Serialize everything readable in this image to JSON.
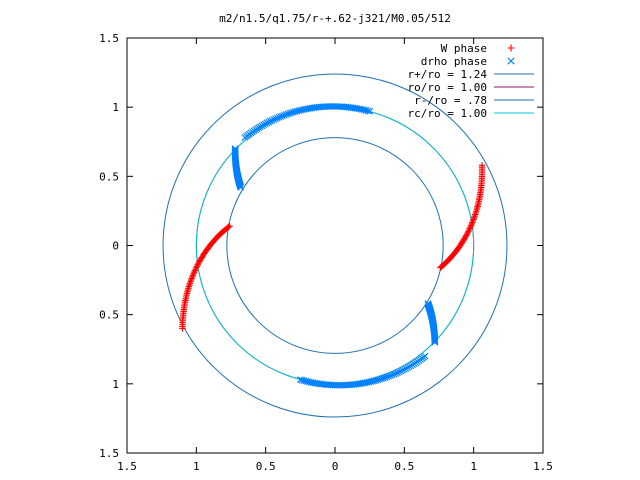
{
  "chart_data": {
    "type": "scatter",
    "title": "m2/n1.5/q1.75/r-+.62-j321/M0.05/512",
    "xlabel": "",
    "ylabel": "",
    "xlim": [
      -1.5,
      1.5
    ],
    "ylim": [
      -1.5,
      1.5
    ],
    "xticks": [
      -1.5,
      -1,
      -0.5,
      0,
      0.5,
      1,
      1.5
    ],
    "yticks": [
      -1.5,
      -1,
      -0.5,
      0,
      0.5,
      1,
      1.5
    ],
    "xtick_labels": [
      "1.5",
      "1",
      "0.5",
      "0",
      "0.5",
      "1",
      "1.5"
    ],
    "ytick_labels": [
      "1.5",
      "1",
      "0.5",
      "0",
      "0.5",
      "1",
      "1.5"
    ],
    "grid": false,
    "legend_position": "top-right",
    "colors": {
      "w_phase": "#ff0000",
      "drho_phase": "#0080ff",
      "r_plus": "#1f6fb4",
      "ro": "#8b1a6b",
      "r_minus": "#1f6fb4",
      "rc": "#00c8d8"
    },
    "circles": [
      {
        "label": "r+/ro = 1.24",
        "radius": 1.24,
        "color_key": "r_plus"
      },
      {
        "label": "ro/ro = 1.00",
        "radius": 1.0,
        "color_key": "ro"
      },
      {
        "label": "r-/ro = .78",
        "radius": 0.78,
        "color_key": "r_minus"
      },
      {
        "label": "rc/ro = 1.00",
        "radius": 1.0,
        "color_key": "rc"
      }
    ],
    "series": [
      {
        "name": "W phase",
        "marker": "+",
        "color_key": "w_phase",
        "arcs": [
          {
            "x0": 1.06,
            "y0": 0.58,
            "x1": 0.76,
            "y1": -0.16
          },
          {
            "x0": -0.76,
            "y0": 0.14,
            "x1": -1.1,
            "y1": -0.6
          }
        ]
      },
      {
        "name": "drho phase",
        "marker": "x",
        "color_key": "drho_phase",
        "arcs": [
          {
            "x0": -0.68,
            "y0": 0.42,
            "x1": -0.72,
            "y1": 0.7
          },
          {
            "x0": -0.65,
            "y0": 0.78,
            "x1": 0.25,
            "y1": 0.97
          },
          {
            "x0": 0.67,
            "y0": -0.42,
            "x1": 0.72,
            "y1": -0.7
          },
          {
            "x0": 0.65,
            "y0": -0.8,
            "x1": -0.25,
            "y1": -0.97
          }
        ]
      }
    ]
  }
}
